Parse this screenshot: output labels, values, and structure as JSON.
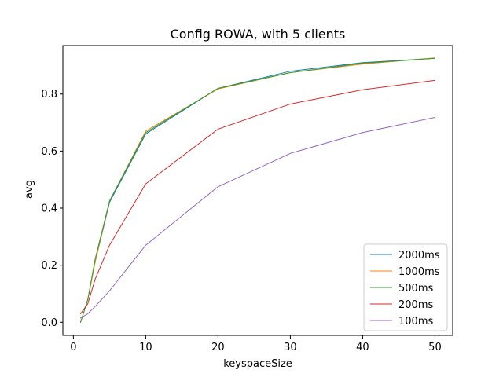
{
  "chart_data": {
    "type": "line",
    "title": "Config ROWA, with 5 clients",
    "xlabel": "keyspaceSize",
    "ylabel": "avg",
    "xlim": [
      -1.45,
      52.45
    ],
    "ylim": [
      -0.046,
      0.97
    ],
    "x_ticks": [
      0,
      10,
      20,
      30,
      40,
      50
    ],
    "x_tick_labels": [
      "0",
      "10",
      "20",
      "30",
      "40",
      "50"
    ],
    "y_ticks": [
      0.0,
      0.2,
      0.4,
      0.6,
      0.8
    ],
    "y_tick_labels": [
      "0.0",
      "0.2",
      "0.4",
      "0.6",
      "0.8"
    ],
    "grid": false,
    "legend_position": "lower-right",
    "x": [
      1,
      2,
      3,
      5,
      10,
      20,
      30,
      40,
      50
    ],
    "series": [
      {
        "name": "2000ms",
        "color": "#1f77b4",
        "values": [
          0.0,
          0.08,
          0.21,
          0.42,
          0.66,
          0.82,
          0.88,
          0.91,
          0.925
        ]
      },
      {
        "name": "1000ms",
        "color": "#ff7f0e",
        "values": [
          0.0,
          0.08,
          0.21,
          0.425,
          0.67,
          0.818,
          0.875,
          0.905,
          0.927
        ]
      },
      {
        "name": "500ms",
        "color": "#2ca02c",
        "values": [
          0.0,
          0.08,
          0.22,
          0.425,
          0.665,
          0.82,
          0.875,
          0.908,
          0.925
        ]
      },
      {
        "name": "200ms",
        "color": "#d62728",
        "values": [
          0.03,
          0.065,
          0.15,
          0.27,
          0.485,
          0.677,
          0.765,
          0.815,
          0.848
        ]
      },
      {
        "name": "100ms",
        "color": "#9467bd",
        "values": [
          0.015,
          0.03,
          0.055,
          0.11,
          0.27,
          0.475,
          0.592,
          0.665,
          0.718
        ]
      }
    ]
  }
}
